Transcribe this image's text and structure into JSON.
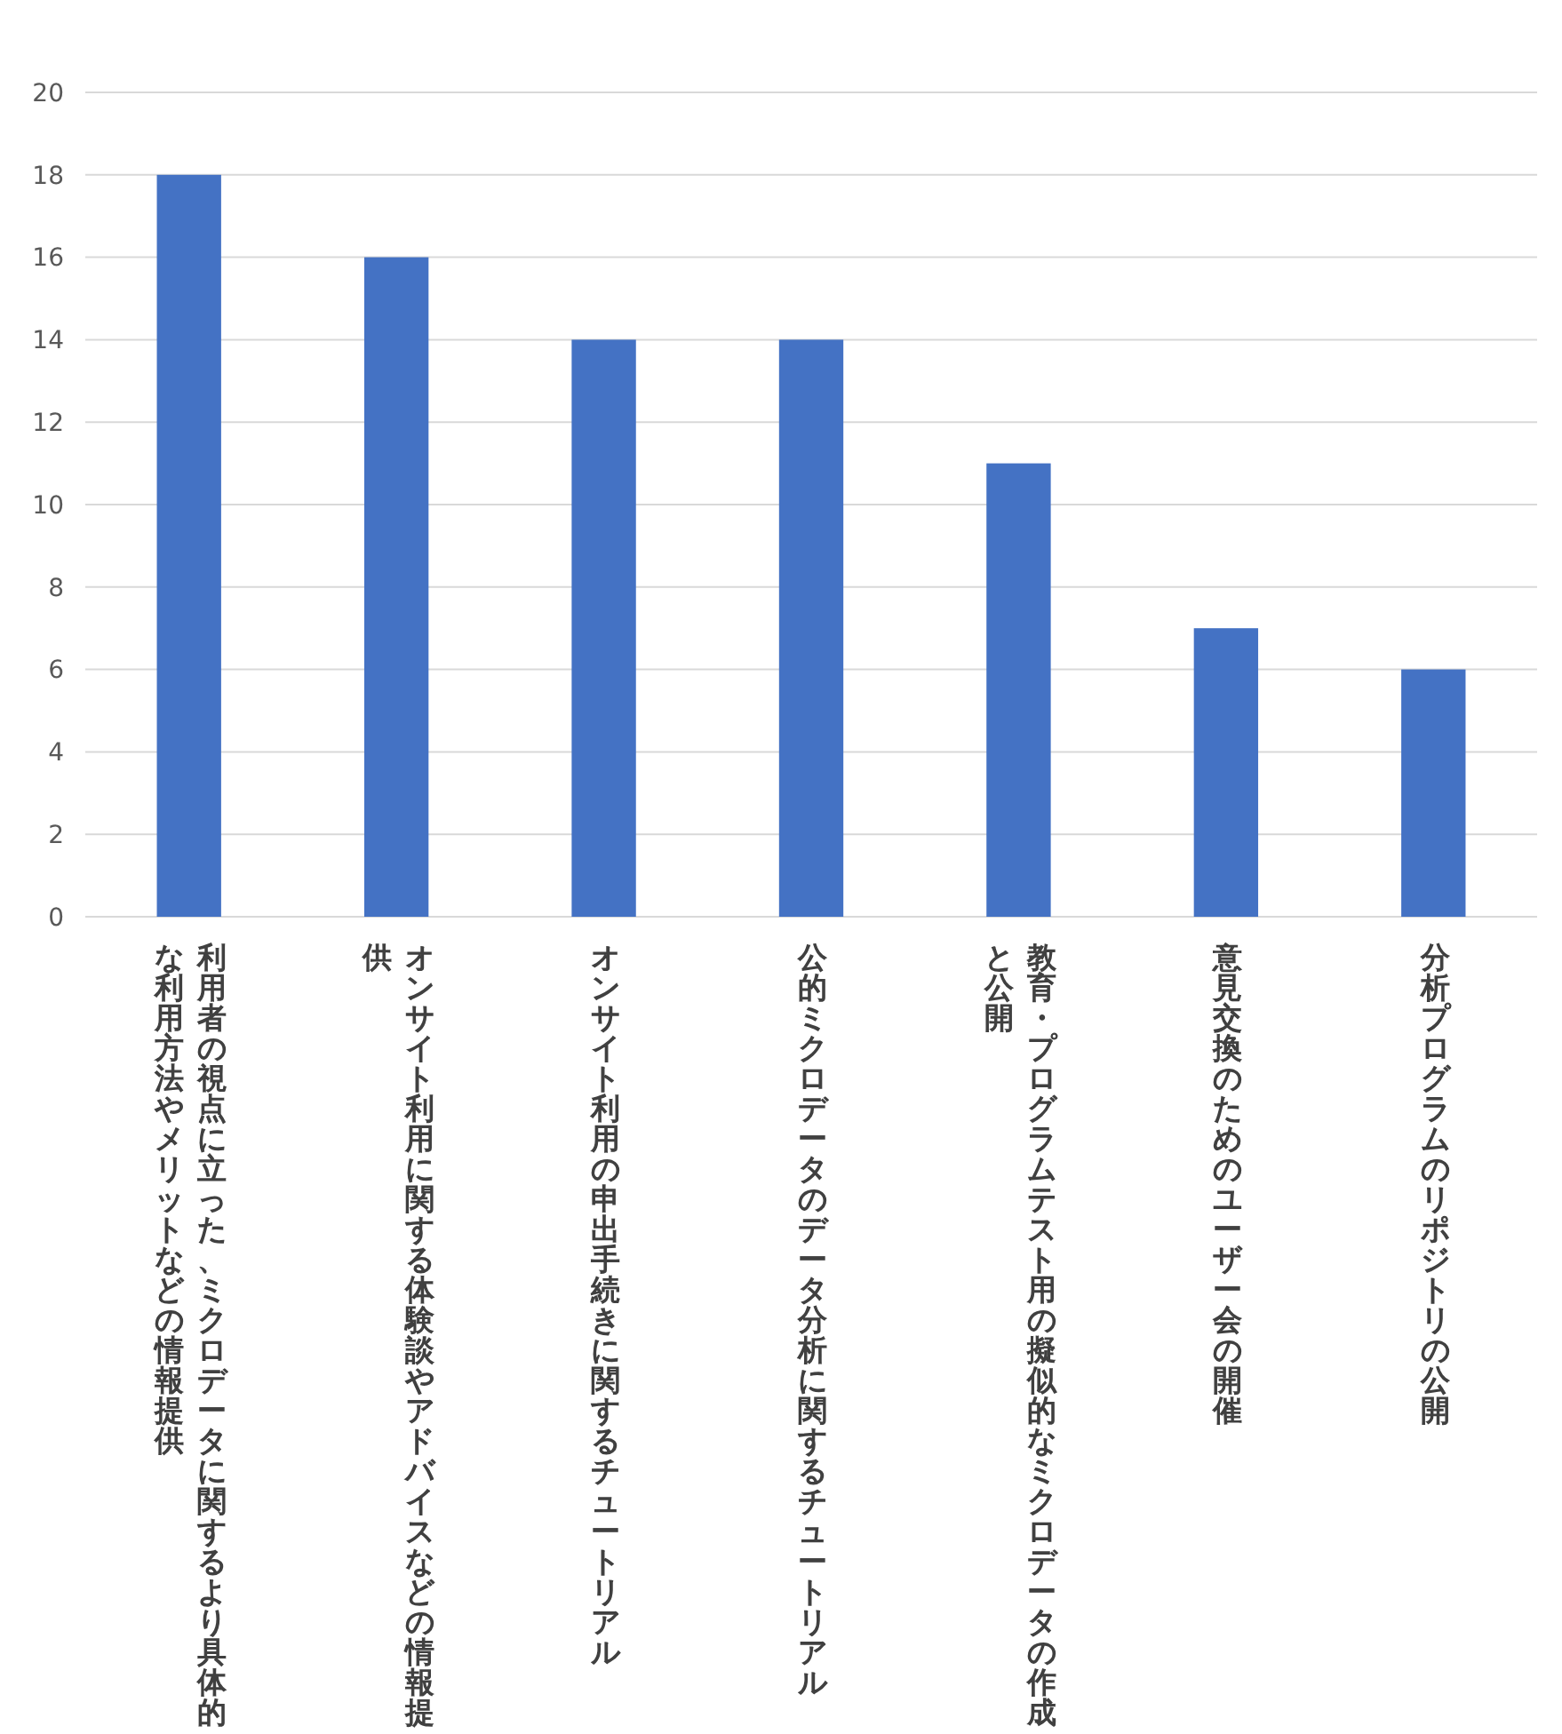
{
  "chart_data": {
    "type": "bar",
    "categories": [
      "利用者の視点に立った、ミクロデータに関するより具体的な利用方法やメリットなどの情報提供",
      "オンサイト利用に関する体験談やアドバイスなどの情報提供",
      "オンサイト利用の申出手続きに関するチュートリアル",
      "公的ミクロデータのデータ分析に関するチュートリアル",
      "教育・プログラムテスト用の擬似的なミクロデータの作成と公開",
      "意見交換のためのユーザー会の開催",
      "分析プログラムのリポジトリの公開"
    ],
    "values": [
      18,
      16,
      14,
      14,
      11,
      7,
      6
    ],
    "color": "#4472c4",
    "ylim": [
      0,
      20
    ],
    "yticks": [
      0,
      2,
      4,
      6,
      8,
      10,
      12,
      14,
      16,
      18,
      20
    ],
    "grid": "y"
  }
}
